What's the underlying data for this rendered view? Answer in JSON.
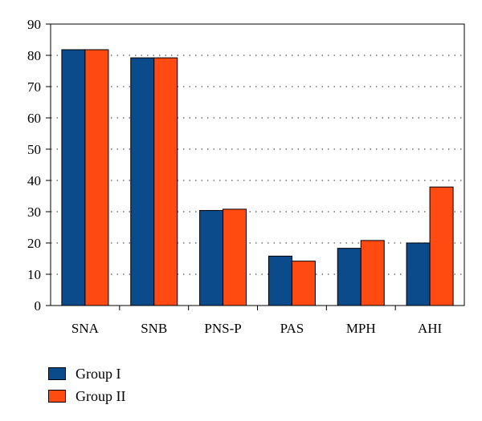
{
  "chart_data": {
    "type": "bar",
    "categories": [
      "SNA",
      "SNB",
      "PNS-P",
      "PAS",
      "MPH",
      "AHI"
    ],
    "series": [
      {
        "name": "Group I",
        "color": "#0b4a8b",
        "values": [
          81.8,
          79.2,
          30.4,
          15.8,
          18.3,
          20.0
        ]
      },
      {
        "name": "Group II",
        "color": "#ff4a12",
        "values": [
          81.8,
          79.2,
          30.8,
          14.2,
          20.8,
          37.9
        ]
      }
    ],
    "title": "",
    "xlabel": "",
    "ylabel": "",
    "ylim": [
      0,
      90
    ],
    "yticks": [
      0,
      10,
      20,
      30,
      40,
      50,
      60,
      70,
      80,
      90
    ],
    "grid": "horizontal-dotted",
    "legend": "bottom-left"
  }
}
